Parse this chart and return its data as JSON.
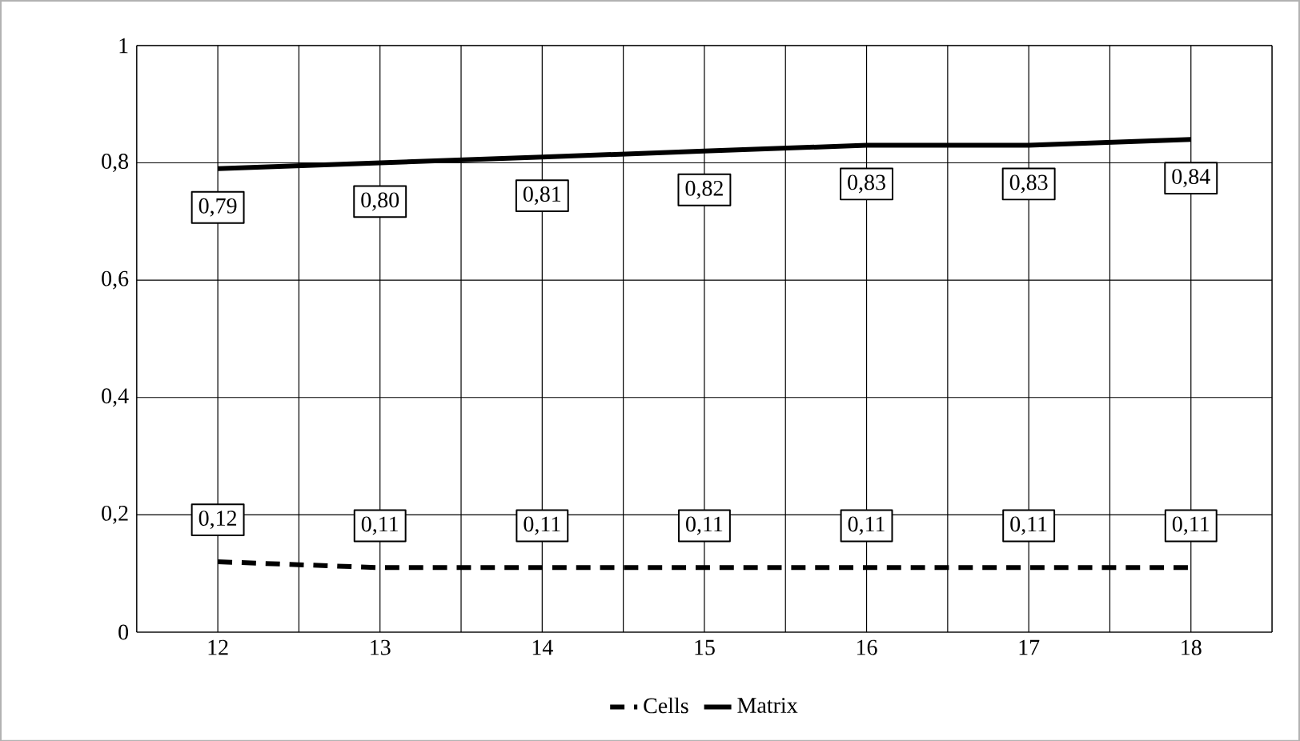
{
  "chart_data": {
    "type": "line",
    "categories": [
      "12",
      "13",
      "14",
      "15",
      "16",
      "17",
      "18"
    ],
    "series": [
      {
        "name": "Cells",
        "color": "#000000",
        "line_style": "dashed",
        "values": [
          0.12,
          0.11,
          0.11,
          0.11,
          0.11,
          0.11,
          0.11
        ],
        "value_labels": [
          "0,12",
          "0,11",
          "0,11",
          "0,11",
          "0,11",
          "0,11",
          "0,11"
        ]
      },
      {
        "name": "Matrix",
        "color": "#000000",
        "line_style": "solid",
        "values": [
          0.79,
          0.8,
          0.81,
          0.82,
          0.83,
          0.83,
          0.84
        ],
        "value_labels": [
          "0,79",
          "0,80",
          "0,81",
          "0,82",
          "0,83",
          "0,83",
          "0,84"
        ]
      }
    ],
    "ylim": [
      0,
      1
    ],
    "yticks": [
      0,
      {
        "value": 0.2,
        "label": "0,2"
      },
      {
        "value": 0.4,
        "label": "0,4"
      },
      {
        "value": 0.6,
        "label": "0,6"
      },
      {
        "value": 0.8,
        "label": "0,8"
      },
      1
    ],
    "grid": true,
    "legend": "bottom",
    "marker": "none"
  }
}
